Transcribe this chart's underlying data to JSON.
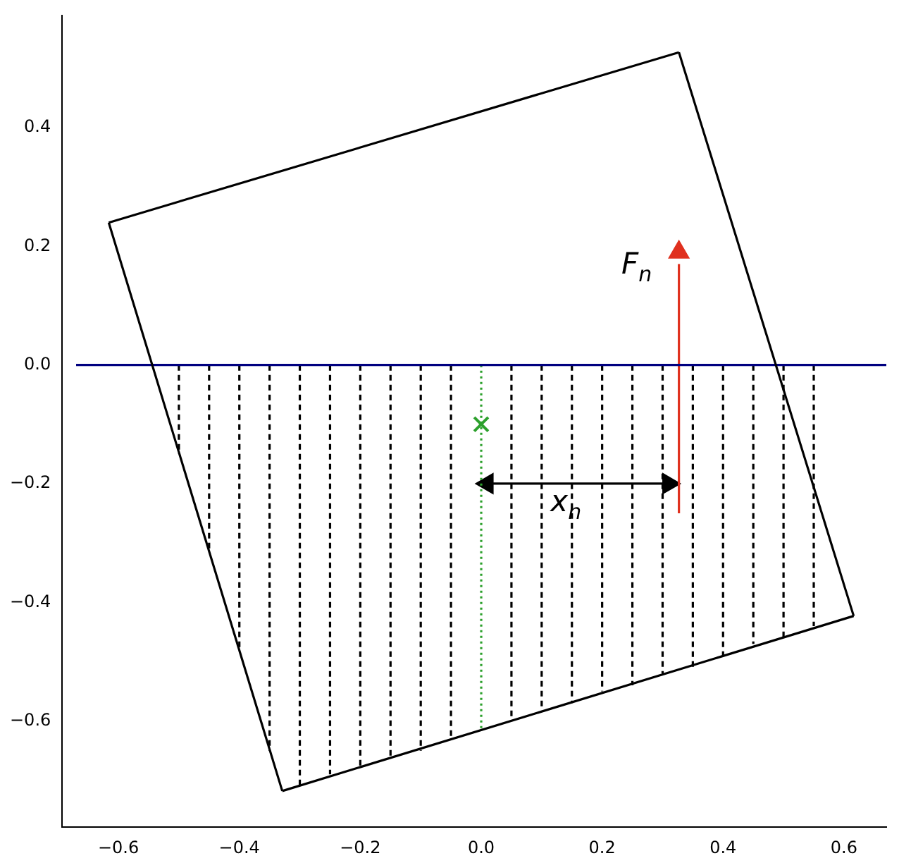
{
  "chart_data": {
    "type": "line",
    "marker": "none",
    "xlim": [
      -0.693,
      0.67
    ],
    "ylim": [
      -0.779,
      0.589
    ],
    "xticks": [
      {
        "value": -0.6,
        "label": "−0.6"
      },
      {
        "value": -0.4,
        "label": "−0.4"
      },
      {
        "value": -0.2,
        "label": "−0.2"
      },
      {
        "value": 0,
        "label": "0.0"
      },
      0.2,
      0.4,
      0.6
    ],
    "yticks": [
      {
        "value": -0.6,
        "label": "−0.6"
      },
      {
        "value": -0.4,
        "label": "−0.4"
      },
      {
        "value": -0.2,
        "label": "−0.2"
      },
      {
        "value": 0,
        "label": "0.0"
      },
      0.2,
      0.4
    ],
    "grid": false,
    "legend": false,
    "annotations": [
      {
        "text": "F$_{n}$",
        "x": 0.327,
        "y": 0.2
      },
      {
        "text": "x$_{n}$",
        "x": 0.21,
        "y": -0.2
      }
    ],
    "series": [
      {
        "color": "#000000",
        "line_style": "solid",
        "x": [
          -0.616,
          0.327
        ],
        "values": [
          0.24,
          0.527
        ]
      },
      {
        "color": "#000000",
        "line_style": "solid",
        "x": [
          0.327,
          0.616
        ],
        "values": [
          0.527,
          -0.423
        ]
      },
      {
        "color": "#000000",
        "line_style": "solid",
        "x": [
          -0.329,
          0.616
        ],
        "values": [
          -0.718,
          -0.423
        ]
      },
      {
        "color": "#000000",
        "line_style": "solid",
        "x": [
          -0.616,
          -0.329
        ],
        "values": [
          0.24,
          -0.718
        ]
      },
      {
        "color": "#000080",
        "line_style": "solid",
        "x": [
          -0.67,
          0.67
        ],
        "values": [
          0,
          0
        ]
      },
      {
        "color": "#000000",
        "line_style": "dashed",
        "x": [
          -0.5,
          -0.5
        ],
        "values": [
          0,
          -0.15
        ]
      },
      {
        "color": "#000000",
        "line_style": "dashed",
        "x": [
          -0.45,
          -0.45
        ],
        "values": [
          0,
          -0.31
        ]
      },
      {
        "color": "#000000",
        "line_style": "dashed",
        "x": [
          -0.4,
          -0.4
        ],
        "values": [
          0,
          -0.48
        ]
      },
      {
        "color": "#000000",
        "line_style": "dashed",
        "x": [
          -0.35,
          -0.35
        ],
        "values": [
          0,
          -0.65
        ]
      },
      {
        "color": "#000000",
        "line_style": "dashed",
        "x": [
          -0.3,
          -0.3
        ],
        "values": [
          0,
          -0.71
        ]
      },
      {
        "color": "#000000",
        "line_style": "dashed",
        "x": [
          -0.25,
          -0.25
        ],
        "values": [
          0,
          -0.69
        ]
      },
      {
        "color": "#000000",
        "line_style": "dashed",
        "x": [
          -0.2,
          -0.2
        ],
        "values": [
          0,
          -0.68
        ]
      },
      {
        "color": "#000000",
        "line_style": "dashed",
        "x": [
          -0.15,
          -0.15
        ],
        "values": [
          0,
          -0.66
        ]
      },
      {
        "color": "#000000",
        "line_style": "dashed",
        "x": [
          -0.1,
          -0.1
        ],
        "values": [
          0,
          -0.65
        ]
      },
      {
        "color": "#000000",
        "line_style": "dashed",
        "x": [
          -0.05,
          -0.05
        ],
        "values": [
          0,
          -0.63
        ]
      },
      {
        "color": "#000000",
        "line_style": "dashed",
        "x": [
          0.05,
          0.05
        ],
        "values": [
          0,
          -0.6
        ]
      },
      {
        "color": "#000000",
        "line_style": "dashed",
        "x": [
          0.1,
          0.1
        ],
        "values": [
          0,
          -0.58
        ]
      },
      {
        "color": "#000000",
        "line_style": "dashed",
        "x": [
          0.15,
          0.15
        ],
        "values": [
          0,
          -0.57
        ]
      },
      {
        "color": "#000000",
        "line_style": "dashed",
        "x": [
          0.2,
          0.2
        ],
        "values": [
          0,
          -0.55
        ]
      },
      {
        "color": "#000000",
        "line_style": "dashed",
        "x": [
          0.25,
          0.25
        ],
        "values": [
          0,
          -0.54
        ]
      },
      {
        "color": "#000000",
        "line_style": "dashed",
        "x": [
          0.3,
          0.3
        ],
        "values": [
          0,
          -0.52
        ]
      },
      {
        "color": "#000000",
        "line_style": "dashed",
        "x": [
          0.35,
          0.35
        ],
        "values": [
          0,
          -0.51
        ]
      },
      {
        "color": "#000000",
        "line_style": "dashed",
        "x": [
          0.4,
          0.4
        ],
        "values": [
          0,
          -0.49
        ]
      },
      {
        "color": "#000000",
        "line_style": "dashed",
        "x": [
          0.45,
          0.45
        ],
        "values": [
          0,
          -0.47
        ]
      },
      {
        "color": "#000000",
        "line_style": "dashed",
        "x": [
          0.5,
          0.5
        ],
        "values": [
          0,
          -0.46
        ]
      },
      {
        "color": "#000000",
        "line_style": "dashed",
        "x": [
          0.55,
          0.55
        ],
        "values": [
          0,
          -0.44
        ]
      },
      {
        "color": "#2ca02c",
        "line_style": "dotted",
        "x": [
          0,
          0
        ],
        "values": [
          0,
          -0.615
        ]
      },
      {
        "type": "scatter",
        "color": "#2ca02c",
        "marker": "cross",
        "x": [
          0
        ],
        "values": [
          -0.1
        ]
      },
      {
        "color": "#e0301e",
        "line_style": "solid",
        "x": [
          0.327,
          0.327
        ],
        "values": [
          -0.25,
          0.17
        ]
      },
      {
        "type": "scatter",
        "color": "#e0301e",
        "marker": "triangle",
        "x": [
          0.327
        ],
        "values": [
          0.19
        ]
      },
      {
        "color": "#000000",
        "line_style": "solid",
        "x": [
          0.01,
          0.31
        ],
        "values": [
          -0.2,
          -0.2
        ]
      },
      {
        "type": "scatter",
        "color": "#000000",
        "marker": "triangle",
        "x": [
          0.01,
          0.31
        ],
        "values": [
          -0.2,
          -0.2
        ]
      }
    ]
  }
}
